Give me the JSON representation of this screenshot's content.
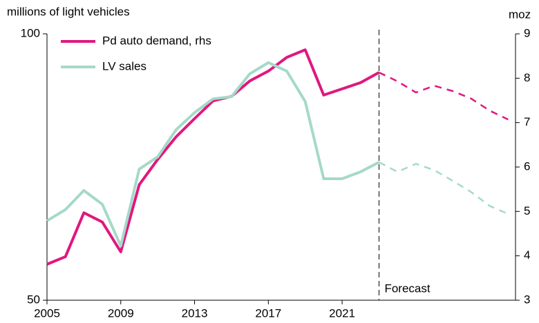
{
  "chart_data": {
    "type": "line",
    "y_label": "millions of light vehicles",
    "y2_label": "moz",
    "annotation": "Forecast",
    "x": [
      2005,
      2006,
      2007,
      2008,
      2009,
      2010,
      2011,
      2012,
      2013,
      2014,
      2015,
      2016,
      2017,
      2018,
      2019,
      2020,
      2021,
      2022,
      2023,
      2024,
      2025,
      2026,
      2027,
      2028,
      2029,
      2030
    ],
    "forecast_x": 2023,
    "series": [
      {
        "name": "Pd auto demand, rhs",
        "color": "#e0177f",
        "axis": "y2",
        "values": [
          3.81,
          3.98,
          4.97,
          4.76,
          4.09,
          5.6,
          6.17,
          6.68,
          7.09,
          7.49,
          7.59,
          7.94,
          8.16,
          8.47,
          8.64,
          7.62,
          7.76,
          7.9,
          8.13,
          7.93,
          7.68,
          7.83,
          7.71,
          7.54,
          7.27,
          7.07
        ]
      },
      {
        "name": "LV sales",
        "color": "#a5d9c9",
        "values": [
          64.9,
          67.0,
          70.6,
          68.0,
          60.2,
          74.6,
          76.9,
          82.0,
          85.2,
          87.8,
          88.2,
          92.5,
          94.6,
          93.0,
          87.3,
          72.8,
          72.8,
          74.1,
          75.9,
          74.1,
          75.6,
          74.4,
          72.4,
          70.3,
          67.7,
          66.2
        ]
      }
    ],
    "xlim": [
      2005,
      2030.4
    ],
    "xticks": [
      2005,
      2009,
      2013,
      2017,
      2021
    ],
    "ylim": [
      50,
      100
    ],
    "yticks": [
      50,
      100
    ],
    "y2lim": [
      3,
      9
    ],
    "y2ticks": [
      3,
      4,
      5,
      6,
      7,
      8,
      9
    ]
  }
}
